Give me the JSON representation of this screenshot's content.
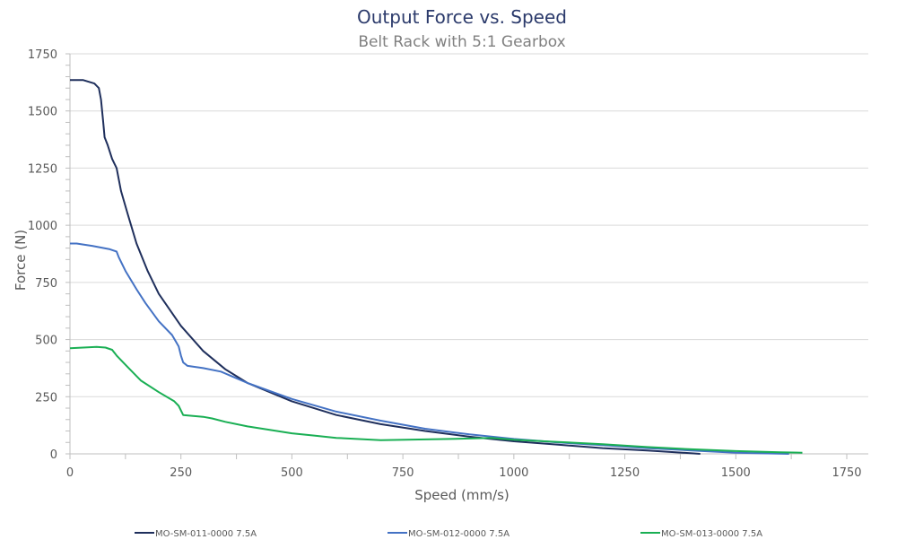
{
  "chart_data": {
    "type": "line",
    "title": "Output Force vs. Speed",
    "subtitle": "Belt Rack with 5:1 Gearbox",
    "xlabel": "Speed (mm/s)",
    "ylabel": "Force (N)",
    "xlim": [
      0,
      1800
    ],
    "ylim": [
      0,
      1750
    ],
    "xticks": [
      0,
      250,
      500,
      750,
      1000,
      1250,
      1500,
      1750
    ],
    "yticks": [
      0,
      250,
      500,
      750,
      1000,
      1250,
      1500,
      1750
    ],
    "grid": "horizontal",
    "legend": "bottom",
    "series": [
      {
        "name": "MO-SM-011-0000 7.5A",
        "color": "#1f2f5c",
        "x": [
          0,
          30,
          55,
          65,
          70,
          75,
          78,
          85,
          95,
          105,
          115,
          130,
          150,
          175,
          200,
          250,
          300,
          350,
          400,
          500,
          600,
          700,
          800,
          900,
          1000,
          1100,
          1200,
          1300,
          1380,
          1420
        ],
        "y": [
          1635,
          1635,
          1620,
          1600,
          1550,
          1450,
          1385,
          1350,
          1290,
          1250,
          1150,
          1050,
          920,
          800,
          700,
          560,
          450,
          370,
          310,
          230,
          170,
          130,
          100,
          75,
          55,
          40,
          25,
          15,
          5,
          0
        ]
      },
      {
        "name": "MO-SM-012-0000 7.5A",
        "color": "#4472c4",
        "x": [
          0,
          15,
          50,
          90,
          105,
          110,
          125,
          150,
          170,
          200,
          230,
          245,
          250,
          255,
          265,
          300,
          340,
          400,
          500,
          600,
          700,
          800,
          900,
          1000,
          1100,
          1200,
          1300,
          1400,
          1500,
          1620
        ],
        "y": [
          920,
          920,
          910,
          895,
          885,
          860,
          800,
          720,
          660,
          580,
          520,
          470,
          430,
          400,
          385,
          375,
          360,
          310,
          240,
          185,
          145,
          110,
          85,
          65,
          50,
          38,
          25,
          15,
          5,
          0
        ]
      },
      {
        "name": "MO-SM-013-0000 7.5A",
        "color": "#1aaf54",
        "x": [
          0,
          30,
          60,
          80,
          95,
          105,
          130,
          160,
          200,
          235,
          245,
          255,
          300,
          320,
          350,
          400,
          450,
          500,
          550,
          600,
          700,
          800,
          900,
          950,
          1000,
          1100,
          1200,
          1300,
          1400,
          1500,
          1600,
          1650
        ],
        "y": [
          462,
          465,
          468,
          465,
          455,
          430,
          380,
          320,
          270,
          230,
          210,
          170,
          162,
          155,
          140,
          120,
          105,
          90,
          80,
          70,
          60,
          63,
          67,
          70,
          62,
          52,
          42,
          30,
          20,
          12,
          7,
          5
        ]
      }
    ]
  }
}
